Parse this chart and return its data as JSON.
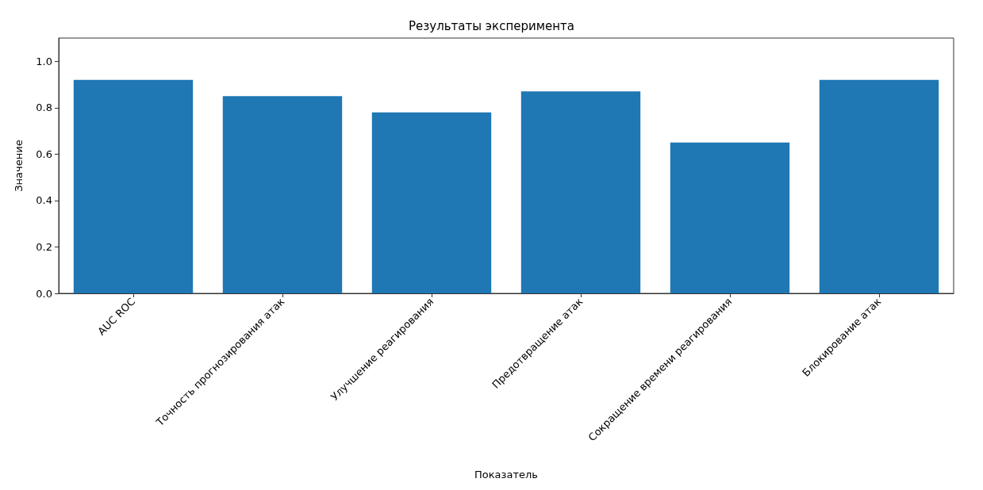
{
  "chart_data": {
    "type": "bar",
    "title": "Результаты эксперимента",
    "xlabel": "Показатель",
    "ylabel": "Значение",
    "categories": [
      "AUC ROC",
      "Точность прогнозирования атак",
      "Улучшение реагирования",
      "Предотвращение атак",
      "Сокращение времени реагирования",
      "Блокирование атак"
    ],
    "values": [
      0.92,
      0.85,
      0.78,
      0.87,
      0.65,
      0.92
    ],
    "color": "#1f77b4",
    "ylim": [
      0,
      1.1
    ],
    "yticks": [
      {
        "value": 0,
        "label": "0.0"
      },
      {
        "value": 0.2,
        "label": "0.2"
      },
      {
        "value": 0.4,
        "label": "0.4"
      },
      {
        "value": 0.6,
        "label": "0.6"
      },
      {
        "value": 0.8,
        "label": "0.8"
      },
      {
        "value": 1,
        "label": "1.0"
      }
    ]
  }
}
